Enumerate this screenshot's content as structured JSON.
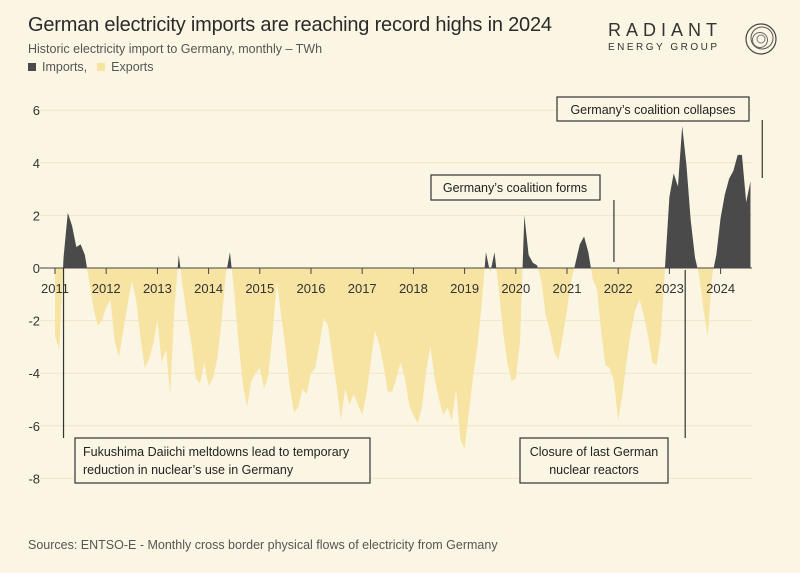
{
  "header": {
    "title": "German electricity imports are reaching record highs in 2024",
    "subtitle": "Historic electricity import to Germany, monthly – TWh",
    "legend_imports": "Imports,",
    "legend_exports": "Exports"
  },
  "logo": {
    "main": "RADIANT",
    "sub": "ENERGY GROUP"
  },
  "source": "Sources: ENTSO-E - Monthly cross border physical flows of electricity from Germany",
  "colors": {
    "imports": "#4a4a4a",
    "exports": "#f8e4a2",
    "background": "#fbf6e4"
  },
  "chart_data": {
    "type": "area",
    "title": "German electricity imports are reaching record highs in 2024",
    "subtitle": "Historic electricity import to Germany, monthly – TWh",
    "xlabel": "",
    "ylabel": "",
    "x_start": "2011-01",
    "x_ticks": [
      "2011",
      "2012",
      "2013",
      "2014",
      "2015",
      "2016",
      "2017",
      "2018",
      "2019",
      "2020",
      "2021",
      "2022",
      "2023",
      "2024"
    ],
    "y_ticks": [
      "6",
      "4",
      "2",
      "0",
      "-2",
      "-4",
      "-6",
      "-8"
    ],
    "ylim": [
      -8,
      6
    ],
    "grid": true,
    "series": [
      {
        "name": "Imports",
        "color": "#4a4a4a",
        "rule": "positive values"
      },
      {
        "name": "Exports",
        "color": "#f8e4a2",
        "rule": "negative values"
      }
    ],
    "values": [
      -2.6,
      -3.1,
      0.4,
      2.1,
      1.6,
      0.8,
      0.9,
      0.5,
      -0.5,
      -1.5,
      -2.2,
      -2.0,
      -1.5,
      -1.2,
      -2.8,
      -3.4,
      -2.4,
      -1.4,
      -0.5,
      -1.2,
      -2.6,
      -3.8,
      -3.5,
      -2.9,
      -2.0,
      -3.6,
      -3.1,
      -4.8,
      -1.5,
      0.5,
      -0.8,
      -1.9,
      -2.9,
      -4.2,
      -4.4,
      -3.6,
      -4.5,
      -4.2,
      -3.5,
      -2.1,
      -0.3,
      0.6,
      -0.9,
      -2.8,
      -4.4,
      -5.3,
      -4.3,
      -4.0,
      -3.8,
      -4.6,
      -4.1,
      -2.5,
      -0.5,
      -1.8,
      -3.0,
      -4.5,
      -5.5,
      -5.3,
      -4.6,
      -4.8,
      -4.0,
      -3.8,
      -2.9,
      -1.9,
      -2.2,
      -3.4,
      -4.5,
      -5.8,
      -4.6,
      -5.2,
      -4.8,
      -5.2,
      -5.6,
      -4.8,
      -3.6,
      -2.4,
      -2.9,
      -3.7,
      -4.7,
      -4.7,
      -4.2,
      -3.6,
      -4.2,
      -5.2,
      -5.6,
      -5.9,
      -5.3,
      -3.9,
      -3.0,
      -4.2,
      -5.0,
      -5.6,
      -5.3,
      -5.8,
      -4.6,
      -6.5,
      -6.9,
      -5.5,
      -4.1,
      -3.0,
      -1.4,
      0.6,
      -0.2,
      0.6,
      -0.8,
      -2.4,
      -3.6,
      -4.3,
      -4.2,
      -2.8,
      2.0,
      0.5,
      0.2,
      0.1,
      -0.5,
      -1.8,
      -2.4,
      -3.2,
      -3.5,
      -2.6,
      -1.6,
      -0.5,
      0.2,
      0.9,
      1.2,
      0.6,
      -0.4,
      -0.8,
      -2.4,
      -3.7,
      -3.8,
      -4.3,
      -5.8,
      -4.8,
      -3.5,
      -2.4,
      -1.6,
      -1.2,
      -1.8,
      -2.6,
      -3.6,
      -3.7,
      -2.6,
      0.1,
      2.7,
      3.6,
      3.1,
      5.4,
      3.9,
      1.8,
      0.4,
      -0.3,
      -1.6,
      -2.6,
      -0.3,
      0.5,
      1.9,
      2.8,
      3.4,
      3.7,
      4.3,
      4.3,
      2.5,
      3.3
    ],
    "annotations": [
      {
        "text": "Germany’s coalition collapses",
        "date": "2024-11"
      },
      {
        "text": "Germany’s coalition forms",
        "date": "2021-12"
      },
      {
        "text": "Fukushima Daiichi meltdowns lead to temporary reduction in nuclear’s use in Germany",
        "date": "2011-03"
      },
      {
        "text": "Closure of last German nuclear reactors",
        "date": "2023-04"
      }
    ]
  }
}
